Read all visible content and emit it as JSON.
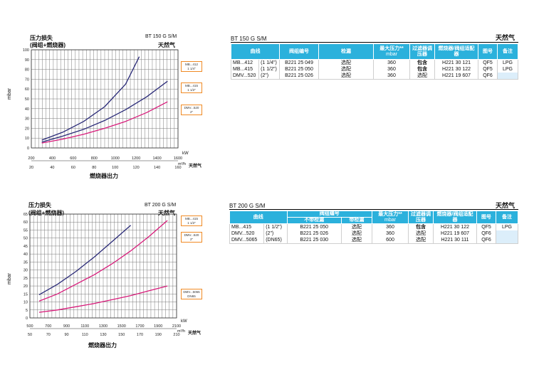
{
  "gas_label": "天然气",
  "kw_unit": "kW",
  "m3h_unit": "m³/h",
  "burner_output_label": "燃烧器出力",
  "chart1": {
    "model": "BT 150 G S/M",
    "title_line1": "压力损失",
    "title_line2": "(阀组+燃烧器)",
    "ylabel": "mbar",
    "y_ticks": [
      "0",
      "10",
      "20",
      "30",
      "40",
      "50",
      "60",
      "70",
      "80",
      "90",
      "100"
    ],
    "kw_ticks": [
      "200",
      "400",
      "600",
      "800",
      "1000",
      "1200",
      "1400",
      "1600"
    ],
    "m3h_ticks": [
      "20",
      "40",
      "60",
      "80",
      "100",
      "120",
      "140",
      "160"
    ],
    "legend": [
      {
        "line1": "MB...412",
        "line2": "1 1/4\""
      },
      {
        "line1": "MB...415",
        "line2": "1 1/2\""
      },
      {
        "line1": "DMV...520",
        "line2": "2\""
      }
    ]
  },
  "chart2": {
    "model": "BT 200 G S/M",
    "title_line1": "压力损失",
    "title_line2": "(阀组+燃烧器)",
    "ylabel": "mbar",
    "y_ticks": [
      "0",
      "5",
      "10",
      "15",
      "20",
      "25",
      "30",
      "35",
      "40",
      "45",
      "50",
      "55",
      "60",
      "65"
    ],
    "kw_ticks": [
      "500",
      "700",
      "900",
      "1100",
      "1300",
      "1500",
      "1700",
      "1900",
      "2100"
    ],
    "m3h_ticks": [
      "50",
      "70",
      "90",
      "110",
      "130",
      "150",
      "170",
      "190",
      "210"
    ],
    "legend": [
      {
        "line1": "MB...415",
        "line2": "1 1/2\""
      },
      {
        "line1": "DMV...520",
        "line2": "2\""
      },
      {
        "line1": "DMV...5065",
        "line2": "DN65"
      }
    ]
  },
  "chart_data": [
    {
      "type": "line",
      "title": "BT 150 G S/M",
      "xlabel": "燃烧器出力",
      "ylabel": "mbar",
      "xlim": [
        200,
        1600
      ],
      "ylim": [
        0,
        100
      ],
      "series": [
        {
          "name": "MB...412 1 1/4\"",
          "color": "#2a2a78",
          "x": [
            300,
            500,
            700,
            900,
            1100,
            1230
          ],
          "y": [
            8,
            16,
            27,
            42,
            65,
            93
          ]
        },
        {
          "name": "MB...415 1 1/2\"",
          "color": "#2a2a78",
          "x": [
            300,
            500,
            700,
            900,
            1100,
            1300,
            1500
          ],
          "y": [
            6,
            12,
            19,
            28,
            39,
            52,
            68
          ]
        },
        {
          "name": "DMV...520 2\"",
          "color": "#d81b7a",
          "x": [
            300,
            500,
            700,
            900,
            1100,
            1300,
            1500
          ],
          "y": [
            5,
            9,
            14,
            20,
            27,
            36,
            47
          ]
        }
      ]
    },
    {
      "type": "line",
      "title": "BT 200 G S/M",
      "xlabel": "燃烧器出力",
      "ylabel": "mbar",
      "xlim": [
        500,
        2100
      ],
      "ylim": [
        0,
        65
      ],
      "series": [
        {
          "name": "MB...415 1 1/2\"",
          "color": "#2a2a78",
          "x": [
            600,
            800,
            1000,
            1200,
            1400,
            1600
          ],
          "y": [
            14.5,
            21,
            29,
            38,
            48,
            58
          ]
        },
        {
          "name": "DMV...520 2\"",
          "color": "#d81b7a",
          "x": [
            600,
            800,
            1000,
            1200,
            1400,
            1600,
            1800,
            2000
          ],
          "y": [
            10.5,
            15,
            21,
            27,
            34,
            42,
            51,
            61
          ]
        },
        {
          "name": "DMV...5065 DN65",
          "color": "#d81b7a",
          "x": [
            600,
            800,
            1000,
            1200,
            1400,
            1600,
            1800,
            2000
          ],
          "y": [
            3.5,
            5,
            7,
            9,
            11.5,
            14,
            17,
            20
          ]
        }
      ]
    }
  ],
  "table1": {
    "model": "BT 150 G S/M",
    "headers": [
      "曲线",
      "阀组编号",
      "检漏",
      "最大压力**",
      "过滤器调压器",
      "燃烧器/阀组适配器",
      "图号",
      "备注"
    ],
    "max_pressure_unit": "mbar",
    "rows": [
      {
        "curve": "MB...412",
        "size": "(1 1/4\")",
        "code": "B221 25 049",
        "leak": "选配",
        "pmax": "360",
        "filter": "包含",
        "adapter": "H221 30 121",
        "drawing": "QF5",
        "note": "LPG"
      },
      {
        "curve": "MB...415",
        "size": "(1 1/2\")",
        "code": "B221 25 050",
        "leak": "选配",
        "pmax": "360",
        "filter": "包含",
        "adapter": "H221 30 122",
        "drawing": "QF5",
        "note": "LPG"
      },
      {
        "curve": "DMV...520",
        "size": "(2\")",
        "code": "B221 25 026",
        "leak": "选配",
        "pmax": "360",
        "filter": "选配",
        "adapter": "H221 19 607",
        "drawing": "QF6",
        "note": ""
      }
    ]
  },
  "table2": {
    "model": "BT 200 G S/M",
    "headers": [
      "曲线",
      "阀组编号",
      "最大压力**",
      "过滤器调压器",
      "燃烧器/阀组适配器",
      "图号",
      "备注"
    ],
    "subheaders": [
      "不带检漏",
      "带检漏"
    ],
    "max_pressure_unit": "mbar",
    "rows": [
      {
        "curve": "MB...415",
        "size": "(1 1/2\")",
        "code": "B221 25 050",
        "leak": "选配",
        "pmax": "360",
        "filter": "包含",
        "adapter": "H221 30 122",
        "drawing": "QF5",
        "note": "LPG"
      },
      {
        "curve": "DMV...520",
        "size": "(2\")",
        "code": "B221 25 026",
        "leak": "选配",
        "pmax": "360",
        "filter": "选配",
        "adapter": "H221 19 607",
        "drawing": "QF6",
        "note": ""
      },
      {
        "curve": "DMV...5065",
        "size": "(DN65)",
        "code": "B221 25 030",
        "leak": "选配",
        "pmax": "600",
        "filter": "选配",
        "adapter": "H221 30 111",
        "drawing": "QF6",
        "note": ""
      }
    ]
  }
}
